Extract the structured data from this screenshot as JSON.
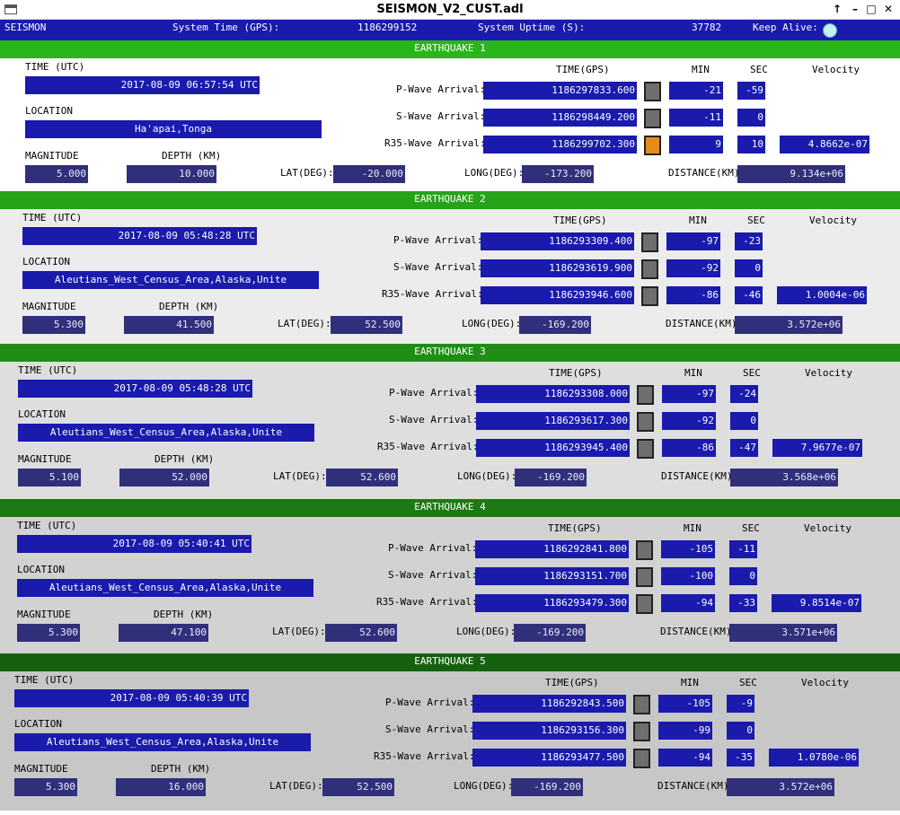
{
  "window": {
    "title": "SEISMON_V2_CUST.adl"
  },
  "header": {
    "app": "SEISMON",
    "sys_time_label": "System Time (GPS):",
    "sys_time": "1186299152",
    "uptime_label": "System Uptime (S):",
    "uptime": "37782",
    "keepalive_label": "Keep Alive:"
  },
  "labels": {
    "time_utc": "TIME (UTC)",
    "location": "LOCATION",
    "magnitude": "MAGNITUDE",
    "depth": "DEPTH (KM)",
    "lat": "LAT(DEG):",
    "long": "LONG(DEG):",
    "distance": "DISTANCE(KM):",
    "time_gps": "TIME(GPS)",
    "min": "MIN",
    "sec": "SEC",
    "velocity": "Velocity",
    "pwave": "P-Wave Arrival:",
    "swave": "S-Wave Arrival:",
    "rwave": "R35-Wave Arrival:"
  },
  "colors": {
    "band_green_1": "#2ab51a",
    "band_green_2": "#27a319",
    "band_green_3": "#218d16",
    "band_green_4": "#1c7a13",
    "band_green_5": "#166110",
    "panel_1": "#ffffff",
    "panel_2": "#ececec",
    "panel_3": "#dedede",
    "panel_4": "#d2d2d2",
    "panel_5": "#c7c7c7",
    "field_blue": "#1a1aad",
    "led_on": "#e48c1a",
    "led_off": "#6e6e6e"
  },
  "earthquakes": [
    {
      "title": "EARTHQUAKE 1",
      "time_utc": "2017-08-09 06:57:54 UTC",
      "location": "Ha'apai,Tonga",
      "magnitude": "5.000",
      "depth": "10.000",
      "lat": "-20.000",
      "long": "-173.200",
      "distance": "9.134e+06",
      "p_time": "1186297833.600",
      "p_min": "-21",
      "p_sec": "-59",
      "s_time": "1186298449.200",
      "s_min": "-11",
      "s_sec": "0",
      "r_time": "1186299702.300",
      "r_min": "9",
      "r_sec": "10",
      "velocity": "4.8662e-07",
      "r_led_on": true
    },
    {
      "title": "EARTHQUAKE 2",
      "time_utc": "2017-08-09 05:48:28 UTC",
      "location": "Aleutians_West_Census_Area,Alaska,Unite",
      "magnitude": "5.300",
      "depth": "41.500",
      "lat": "52.500",
      "long": "-169.200",
      "distance": "3.572e+06",
      "p_time": "1186293309.400",
      "p_min": "-97",
      "p_sec": "-23",
      "s_time": "1186293619.900",
      "s_min": "-92",
      "s_sec": "0",
      "r_time": "1186293946.600",
      "r_min": "-86",
      "r_sec": "-46",
      "velocity": "1.0004e-06",
      "r_led_on": false
    },
    {
      "title": "EARTHQUAKE 3",
      "time_utc": "2017-08-09 05:48:28 UTC",
      "location": "Aleutians_West_Census_Area,Alaska,Unite",
      "magnitude": "5.100",
      "depth": "52.000",
      "lat": "52.600",
      "long": "-169.200",
      "distance": "3.568e+06",
      "p_time": "1186293308.000",
      "p_min": "-97",
      "p_sec": "-24",
      "s_time": "1186293617.300",
      "s_min": "-92",
      "s_sec": "0",
      "r_time": "1186293945.400",
      "r_min": "-86",
      "r_sec": "-47",
      "velocity": "7.9677e-07",
      "r_led_on": false
    },
    {
      "title": "EARTHQUAKE 4",
      "time_utc": "2017-08-09 05:40:41 UTC",
      "location": "Aleutians_West_Census_Area,Alaska,Unite",
      "magnitude": "5.300",
      "depth": "47.100",
      "lat": "52.600",
      "long": "-169.200",
      "distance": "3.571e+06",
      "p_time": "1186292841.800",
      "p_min": "-105",
      "p_sec": "-11",
      "s_time": "1186293151.700",
      "s_min": "-100",
      "s_sec": "0",
      "r_time": "1186293479.300",
      "r_min": "-94",
      "r_sec": "-33",
      "velocity": "9.8514e-07",
      "r_led_on": false
    },
    {
      "title": "EARTHQUAKE 5",
      "time_utc": "2017-08-09 05:40:39 UTC",
      "location": "Aleutians_West_Census_Area,Alaska,Unite",
      "magnitude": "5.300",
      "depth": "16.000",
      "lat": "52.500",
      "long": "-169.200",
      "distance": "3.572e+06",
      "p_time": "1186292843.500",
      "p_min": "-105",
      "p_sec": "-9",
      "s_time": "1186293156.300",
      "s_min": "-99",
      "s_sec": "0",
      "r_time": "1186293477.500",
      "r_min": "-94",
      "r_sec": "-35",
      "velocity": "1.0780e-06",
      "r_led_on": false
    }
  ]
}
